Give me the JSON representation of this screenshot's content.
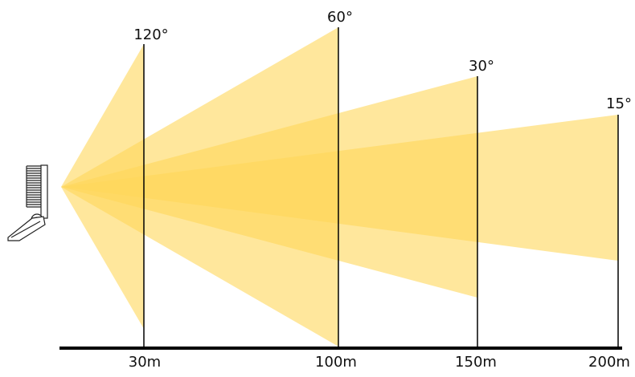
{
  "colors": {
    "beam_fill": "#FFD75A",
    "line": "#000000",
    "fixture_stroke": "#222222"
  },
  "beams": [
    {
      "angle_label": "15°",
      "distance_label": "200m"
    },
    {
      "angle_label": "30°",
      "distance_label": "150m"
    },
    {
      "angle_label": "60°",
      "distance_label": "100m"
    },
    {
      "angle_label": "120°",
      "distance_label": "30m"
    }
  ],
  "icons": {
    "fixture": "floodlight-fixture-icon"
  }
}
